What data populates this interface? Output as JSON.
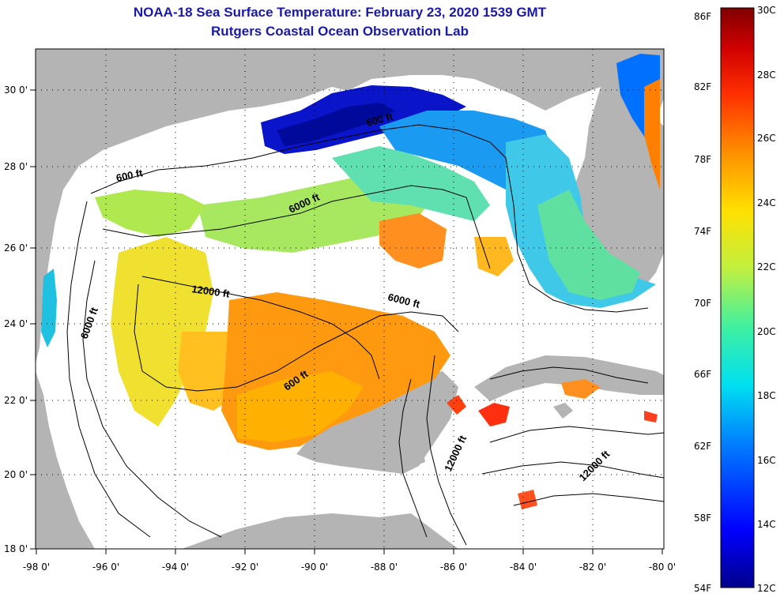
{
  "title": "NOAA-18 Sea Surface Temperature:  February 23, 2020 1539 GMT",
  "subtitle": "Rutgers Coastal Ocean Observation Lab",
  "lat_ticks": [
    "30 0'",
    "28 0'",
    "26 0'",
    "24 0'",
    "22 0'",
    "20 0'",
    "18 0'"
  ],
  "lon_ticks": [
    "-98 0'",
    "-96 0'",
    "-94 0'",
    "-92 0'",
    "-90 0'",
    "-88 0'",
    "-86 0'",
    "-84 0'",
    "-82 0'",
    "-80 0'"
  ],
  "contour_labels": [
    "600 ft",
    "600 ft",
    "6000 ft",
    "12000 ft",
    "6000 ft",
    "6000 ft",
    "600 ft",
    "12000 ft",
    "12000 ft"
  ],
  "colorbar": {
    "f_labels": [
      "86F",
      "82F",
      "78F",
      "74F",
      "70F",
      "66F",
      "62F",
      "58F",
      "54F"
    ],
    "c_labels": [
      "30C",
      "28C",
      "26C",
      "24C",
      "22C",
      "20C",
      "18C",
      "16C",
      "14C",
      "12C"
    ],
    "range_c": [
      12,
      30
    ],
    "range_f": [
      54,
      86
    ]
  },
  "colors": {
    "land": "#b4b4b4",
    "no_data": "#ffffff",
    "title": "#1a1aa6"
  }
}
